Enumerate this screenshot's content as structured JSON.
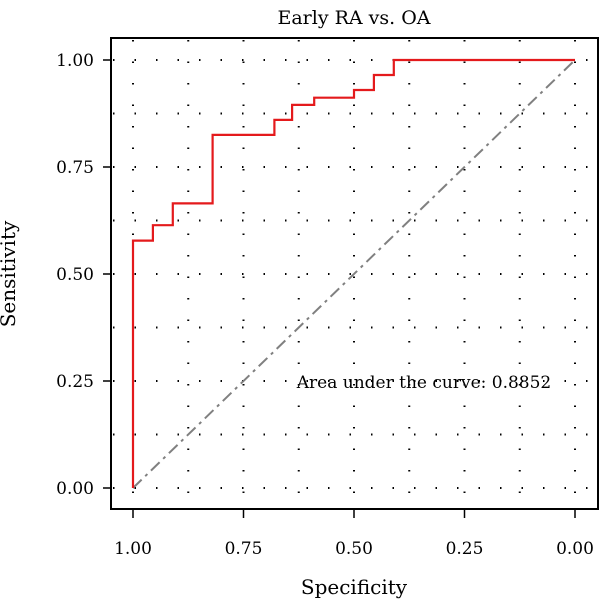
{
  "chart_data": {
    "type": "line",
    "title": "Early RA vs. OA",
    "xlabel": "Specificity",
    "ylabel": "Sensitivity",
    "xlim": [
      1.0,
      0.0
    ],
    "ylim": [
      0.0,
      1.0
    ],
    "x_reversed": true,
    "x_ticks": [
      1.0,
      0.75,
      0.5,
      0.25,
      0.0
    ],
    "x_tick_labels": [
      "1.00",
      "0.75",
      "0.50",
      "0.25",
      "0.00"
    ],
    "y_ticks": [
      0.0,
      0.25,
      0.5,
      0.75,
      1.0
    ],
    "y_tick_labels": [
      "0.00",
      "0.25",
      "0.50",
      "0.75",
      "1.00"
    ],
    "grid": "dotted",
    "annotation": "Area under the curve: 0.8852",
    "series": [
      {
        "color": "#e41a1c",
        "style": "step",
        "x": [
          1.0,
          1.0,
          0.955,
          0.955,
          0.91,
          0.91,
          0.82,
          0.82,
          0.68,
          0.68,
          0.64,
          0.64,
          0.59,
          0.59,
          0.5,
          0.5,
          0.455,
          0.455,
          0.41,
          0.41,
          0.0
        ],
        "y": [
          0.0,
          0.578,
          0.578,
          0.614,
          0.614,
          0.665,
          0.665,
          0.825,
          0.825,
          0.86,
          0.86,
          0.895,
          0.895,
          0.912,
          0.912,
          0.93,
          0.93,
          0.965,
          0.965,
          1.0,
          1.0
        ]
      },
      {
        "color": "#808080",
        "style": "dash-dot",
        "x": [
          1.0,
          0.0
        ],
        "y": [
          0.0,
          1.0
        ]
      }
    ]
  }
}
